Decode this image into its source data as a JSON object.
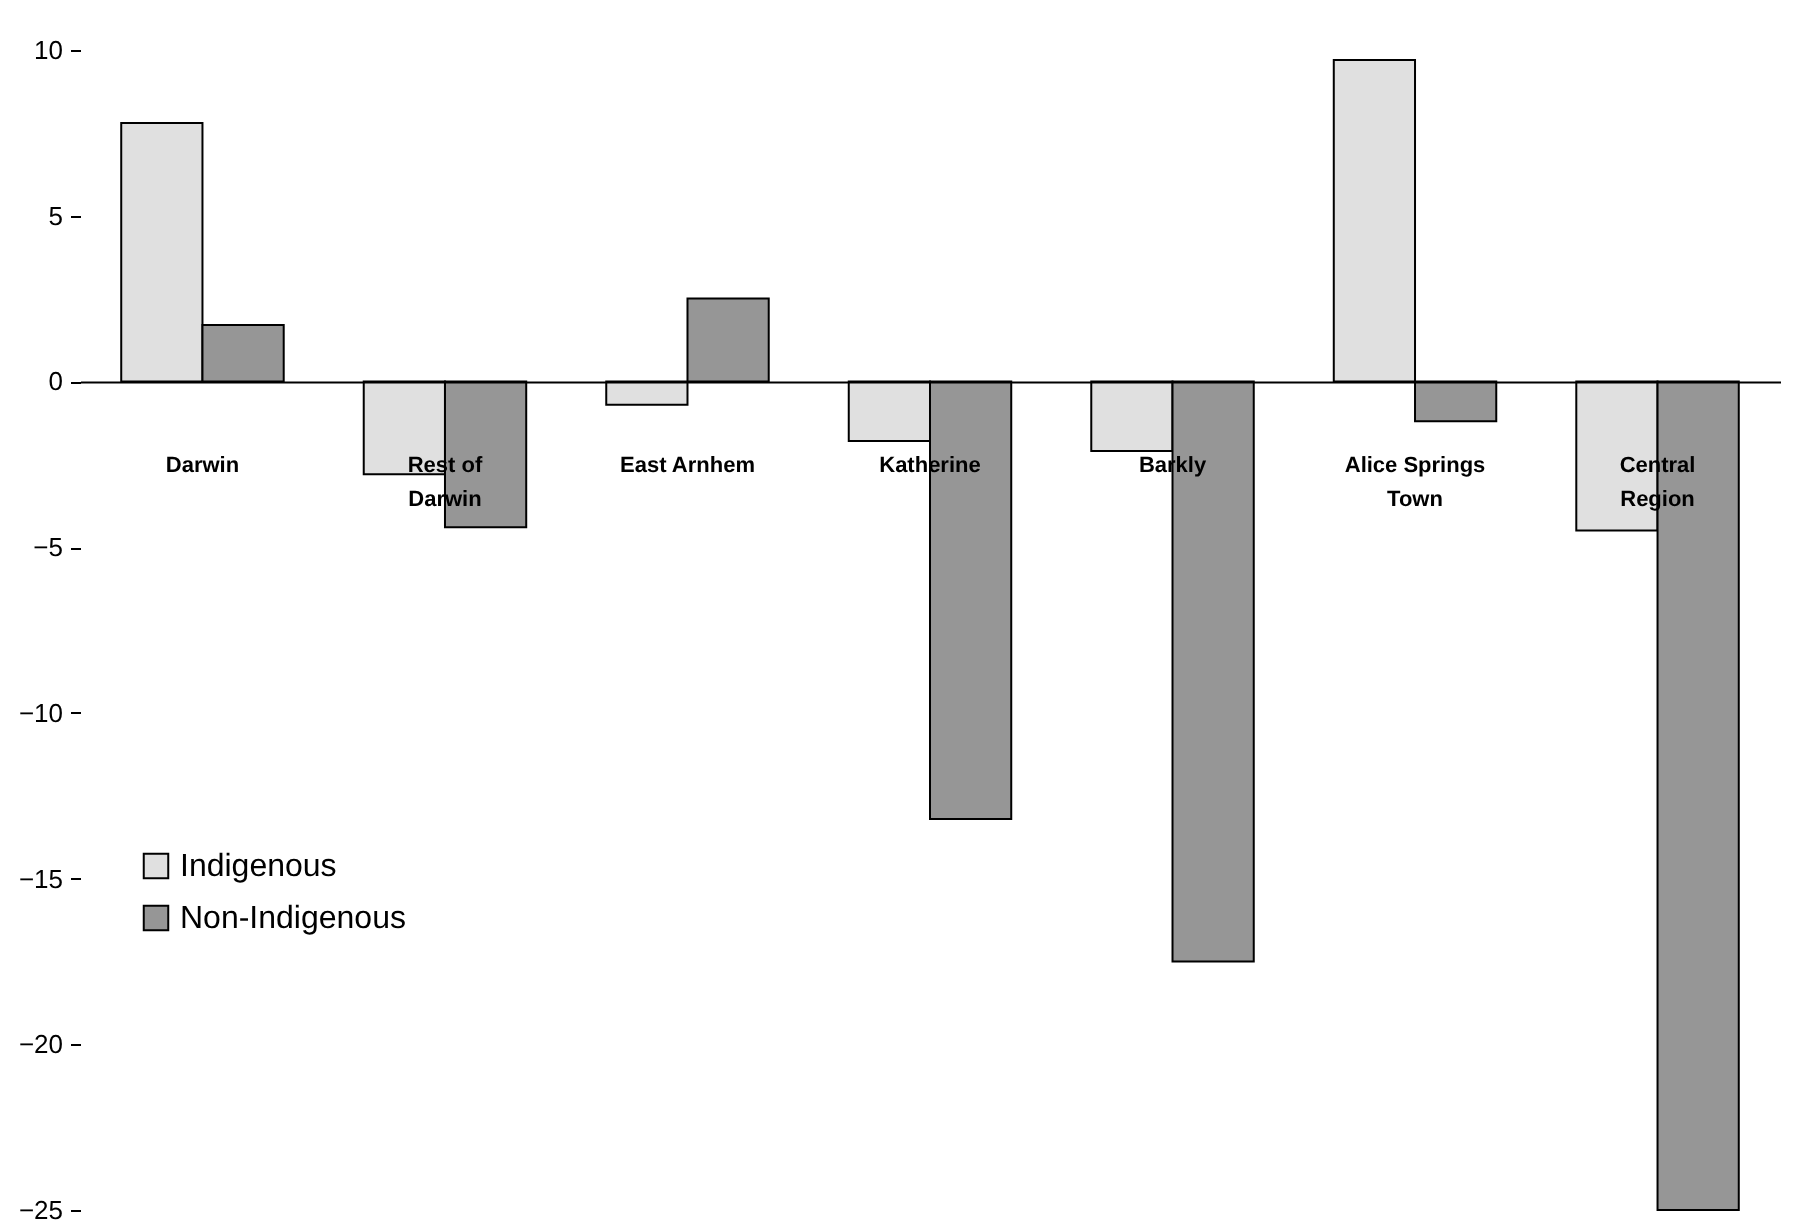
{
  "chart_data": {
    "type": "bar",
    "categories": [
      "Darwin",
      "Rest of Darwin",
      "East Arnhem",
      "Katherine",
      "Barkly",
      "Alice Springs Town",
      "Central Region"
    ],
    "series": [
      {
        "name": "Indigenous",
        "color": "#e0e0e0",
        "values": [
          7.8,
          -2.8,
          -0.7,
          -1.8,
          -2.1,
          9.7,
          -4.5
        ]
      },
      {
        "name": "Non-Indigenous",
        "color": "#969696",
        "values": [
          1.7,
          -4.4,
          2.5,
          -13.2,
          -17.5,
          -1.2,
          -25
        ]
      }
    ],
    "ylim": [
      -25,
      10
    ],
    "yticks": [
      -25,
      -20,
      -15,
      -10,
      -5,
      0,
      5,
      10
    ],
    "legend": "left"
  }
}
